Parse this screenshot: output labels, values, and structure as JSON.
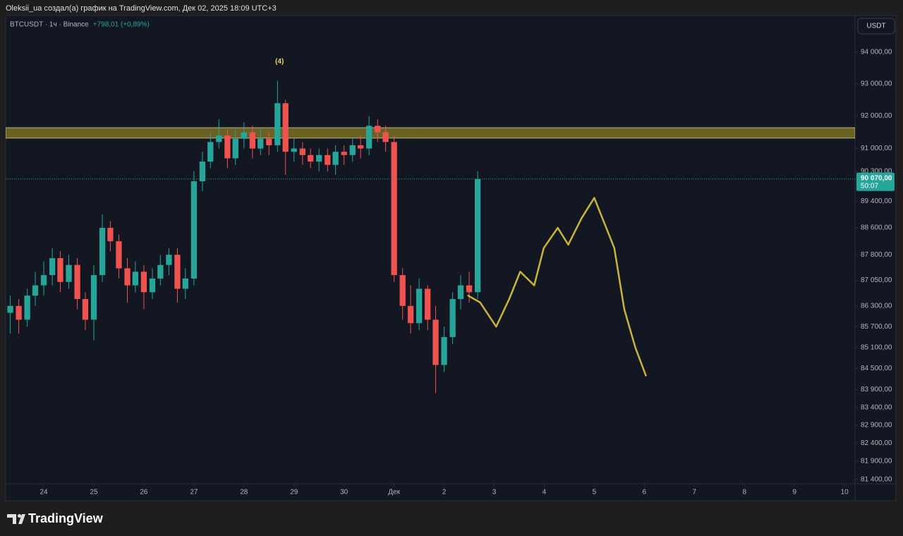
{
  "header": {
    "text": "Oleksii_ua создал(а) график на TradingView.com, Дек 02, 2025 18:09 UTC+3"
  },
  "chart_data": {
    "type": "candlestick",
    "symbol": "BTCUSDT · 1ч · Binance",
    "change": "+798,01 (+0,89%)",
    "currency": "USDT",
    "log_scale": true,
    "up_color": "#26a69a",
    "down_color": "#ef5350",
    "xlim": [
      -0.762,
      16.21
    ],
    "xticks": [
      {
        "value": 0,
        "label": "24"
      },
      {
        "value": 1,
        "label": "25"
      },
      {
        "value": 2,
        "label": "26"
      },
      {
        "value": 3,
        "label": "27"
      },
      {
        "value": 4,
        "label": "28"
      },
      {
        "value": 5,
        "label": "29"
      },
      {
        "value": 6,
        "label": "30"
      },
      {
        "value": 7,
        "label": "Дек"
      },
      {
        "value": 8,
        "label": "2"
      },
      {
        "value": 9,
        "label": "3"
      },
      {
        "value": 10,
        "label": "4"
      },
      {
        "value": 11,
        "label": "5"
      },
      {
        "value": 12,
        "label": "6"
      },
      {
        "value": 13,
        "label": "7"
      },
      {
        "value": 14,
        "label": "8"
      },
      {
        "value": 15,
        "label": "9"
      },
      {
        "value": 16,
        "label": "10"
      }
    ],
    "ylim": [
      81280,
      95170
    ],
    "yticks": [
      {
        "value": 94000,
        "label": "94 000,00"
      },
      {
        "value": 93000,
        "label": "93 000,00"
      },
      {
        "value": 92000,
        "label": "92 000,00"
      },
      {
        "value": 91000,
        "label": "91 000,00"
      },
      {
        "value": 90300,
        "label": "90 300,00"
      },
      {
        "value": 89400,
        "label": "89 400,00"
      },
      {
        "value": 88600,
        "label": "88 600,00"
      },
      {
        "value": 87800,
        "label": "87 800,00"
      },
      {
        "value": 87050,
        "label": "87 050,00"
      },
      {
        "value": 86300,
        "label": "86 300,00"
      },
      {
        "value": 85700,
        "label": "85 700,00"
      },
      {
        "value": 85100,
        "label": "85 100,00"
      },
      {
        "value": 84500,
        "label": "84 500,00"
      },
      {
        "value": 83900,
        "label": "83 900,00"
      },
      {
        "value": 83400,
        "label": "83 400,00"
      },
      {
        "value": 82900,
        "label": "82 900,00"
      },
      {
        "value": 82400,
        "label": "82 400,00"
      },
      {
        "value": 81900,
        "label": "81 900,00"
      },
      {
        "value": 81400,
        "label": "81 400,00"
      }
    ],
    "x": [
      -0.67,
      -0.5,
      -0.33,
      -0.17,
      0,
      0.17,
      0.33,
      0.5,
      0.67,
      0.83,
      1,
      1.17,
      1.33,
      1.5,
      1.67,
      1.83,
      2,
      2.17,
      2.33,
      2.5,
      2.67,
      2.83,
      3,
      3.17,
      3.33,
      3.5,
      3.67,
      3.83,
      4,
      4.17,
      4.33,
      4.5,
      4.67,
      4.83,
      5,
      5.17,
      5.33,
      5.5,
      5.67,
      5.83,
      6,
      6.17,
      6.33,
      6.5,
      6.67,
      6.83,
      7,
      7.17,
      7.33,
      7.5,
      7.67,
      7.83,
      8,
      8.17,
      8.33,
      8.5,
      8.67
    ],
    "open": [
      86100,
      86300,
      85900,
      86600,
      86900,
      87200,
      87700,
      87000,
      87500,
      86500,
      85900,
      87200,
      88600,
      88200,
      87400,
      86900,
      87300,
      86700,
      87100,
      87500,
      87800,
      86800,
      87100,
      90000,
      90600,
      91200,
      91400,
      90700,
      91300,
      91500,
      91000,
      91300,
      91100,
      92400,
      90900,
      91000,
      90800,
      90600,
      90800,
      90500,
      90900,
      90800,
      91100,
      91000,
      91700,
      91500,
      91200,
      87200,
      86300,
      85800,
      86800,
      85900,
      84600,
      85400,
      86500,
      86900,
      86700
    ],
    "high": [
      86600,
      86500,
      86800,
      87300,
      87600,
      88000,
      87900,
      87800,
      87700,
      86700,
      87500,
      89000,
      88800,
      88400,
      87700,
      87600,
      87500,
      87400,
      87800,
      88000,
      88000,
      87400,
      90300,
      90900,
      91500,
      91900,
      91600,
      91600,
      91800,
      91700,
      91600,
      91500,
      93100,
      92500,
      91300,
      91200,
      91000,
      91000,
      91000,
      91100,
      91100,
      91300,
      91400,
      92000,
      91900,
      91700,
      91400,
      87400,
      86900,
      87100,
      86900,
      86300,
      85700,
      86700,
      87200,
      87300,
      90300
    ],
    "low": [
      85500,
      85500,
      85700,
      86300,
      86600,
      86900,
      86700,
      86800,
      86200,
      85600,
      85300,
      87000,
      87900,
      87100,
      86400,
      86700,
      86200,
      86500,
      86900,
      87200,
      86400,
      86500,
      86900,
      89700,
      90400,
      91000,
      90400,
      90500,
      91000,
      90700,
      90800,
      90800,
      90900,
      90200,
      90600,
      90500,
      90400,
      90300,
      90300,
      90200,
      90500,
      90600,
      90700,
      90800,
      91200,
      90900,
      87000,
      85900,
      85500,
      85600,
      85600,
      83800,
      84400,
      85200,
      86200,
      86400,
      86500
    ],
    "close": [
      86300,
      85900,
      86600,
      86900,
      87200,
      87700,
      87000,
      87500,
      86500,
      85900,
      87200,
      88600,
      88200,
      87400,
      86900,
      87300,
      86700,
      87100,
      87500,
      87800,
      86800,
      87100,
      90000,
      90600,
      91200,
      91400,
      90700,
      91300,
      91500,
      91000,
      91300,
      91100,
      92400,
      90900,
      91000,
      90800,
      90600,
      90800,
      90500,
      90900,
      90800,
      91100,
      91000,
      91700,
      91500,
      91200,
      87200,
      86300,
      85800,
      86800,
      85900,
      84600,
      85400,
      86500,
      86900,
      86700,
      90070
    ],
    "last_price": {
      "value": 90070,
      "label": "90 070,00",
      "countdown": "50:07",
      "color": "#26a69a"
    },
    "zone": {
      "low": 91320,
      "high": 91640,
      "color": "#7a6e24"
    },
    "annotation": {
      "text": "(4)",
      "x": 4.71,
      "y": 93700
    },
    "forecast": {
      "color": "#c9b53a",
      "x": [
        8.48,
        8.72,
        9.04,
        9.3,
        9.52,
        9.8,
        9.99,
        10.27,
        10.48,
        10.75,
        11.0,
        11.4,
        11.6,
        11.82,
        12.03
      ],
      "y": [
        86600,
        86400,
        85700,
        86500,
        87300,
        86900,
        88000,
        88600,
        88100,
        88900,
        89500,
        88000,
        86200,
        85100,
        84300
      ]
    }
  },
  "footer": {
    "brand": "TradingView"
  }
}
